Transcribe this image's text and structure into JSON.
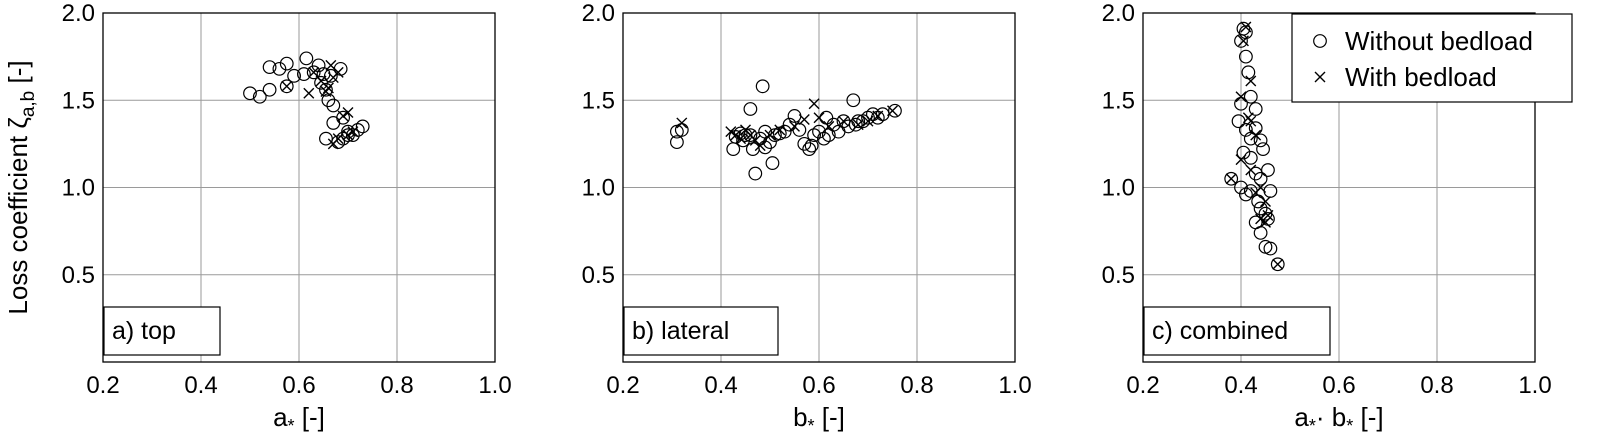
{
  "chart_data": [
    {
      "type": "scatter",
      "panel_label": "a) top",
      "xlabel": "a",
      "xlabel_sub": "*",
      "xlabel_unit": " [-]",
      "ylabel": "Loss coefficient ζ",
      "ylabel_sub": "a,b",
      "ylabel_unit": " [-]",
      "xlim": [
        0.2,
        1.0
      ],
      "ylim": [
        0.0,
        2.0
      ],
      "xticks": [
        "0.2",
        "0.4",
        "0.6",
        "0.8",
        "1.0"
      ],
      "yticks": [
        "0.5",
        "1.0",
        "1.5",
        "2.0"
      ],
      "grid": true,
      "series": [
        {
          "name": "Without bedload",
          "marker": "circle",
          "points": [
            [
              0.5,
              1.54
            ],
            [
              0.52,
              1.52
            ],
            [
              0.54,
              1.56
            ],
            [
              0.54,
              1.69
            ],
            [
              0.56,
              1.68
            ],
            [
              0.575,
              1.71
            ],
            [
              0.575,
              1.58
            ],
            [
              0.59,
              1.64
            ],
            [
              0.61,
              1.65
            ],
            [
              0.615,
              1.74
            ],
            [
              0.63,
              1.66
            ],
            [
              0.64,
              1.7
            ],
            [
              0.645,
              1.6
            ],
            [
              0.65,
              1.65
            ],
            [
              0.655,
              1.56
            ],
            [
              0.66,
              1.5
            ],
            [
              0.665,
              1.64
            ],
            [
              0.67,
              1.47
            ],
            [
              0.685,
              1.68
            ],
            [
              0.655,
              1.28
            ],
            [
              0.67,
              1.37
            ],
            [
              0.69,
              1.4
            ],
            [
              0.68,
              1.26
            ],
            [
              0.69,
              1.28
            ],
            [
              0.7,
              1.3
            ],
            [
              0.71,
              1.3
            ],
            [
              0.72,
              1.33
            ],
            [
              0.73,
              1.35
            ],
            [
              0.7,
              1.32
            ]
          ]
        },
        {
          "name": "With bedload",
          "marker": "cross",
          "points": [
            [
              0.575,
              1.58
            ],
            [
              0.62,
              1.54
            ],
            [
              0.63,
              1.66
            ],
            [
              0.645,
              1.61
            ],
            [
              0.655,
              1.55
            ],
            [
              0.665,
              1.7
            ],
            [
              0.67,
              1.63
            ],
            [
              0.68,
              1.66
            ],
            [
              0.66,
              1.57
            ],
            [
              0.67,
              1.25
            ],
            [
              0.68,
              1.28
            ],
            [
              0.69,
              1.41
            ],
            [
              0.7,
              1.43
            ],
            [
              0.7,
              1.3
            ],
            [
              0.71,
              1.32
            ]
          ]
        }
      ]
    },
    {
      "type": "scatter",
      "panel_label": "b) lateral",
      "xlabel": "b",
      "xlabel_sub": "*",
      "xlabel_unit": " [-]",
      "xlim": [
        0.2,
        1.0
      ],
      "ylim": [
        0.0,
        2.0
      ],
      "xticks": [
        "0.2",
        "0.4",
        "0.6",
        "0.8",
        "1.0"
      ],
      "yticks": [
        "0.5",
        "1.0",
        "1.5",
        "2.0"
      ],
      "grid": true,
      "series": [
        {
          "name": "Without bedload",
          "marker": "circle",
          "points": [
            [
              0.31,
              1.32
            ],
            [
              0.31,
              1.26
            ],
            [
              0.32,
              1.33
            ],
            [
              0.425,
              1.22
            ],
            [
              0.43,
              1.29
            ],
            [
              0.44,
              1.31
            ],
            [
              0.445,
              1.27
            ],
            [
              0.45,
              1.3
            ],
            [
              0.46,
              1.3
            ],
            [
              0.46,
              1.45
            ],
            [
              0.465,
              1.22
            ],
            [
              0.47,
              1.08
            ],
            [
              0.48,
              1.28
            ],
            [
              0.485,
              1.58
            ],
            [
              0.49,
              1.32
            ],
            [
              0.49,
              1.23
            ],
            [
              0.5,
              1.26
            ],
            [
              0.505,
              1.14
            ],
            [
              0.51,
              1.3
            ],
            [
              0.52,
              1.31
            ],
            [
              0.53,
              1.32
            ],
            [
              0.54,
              1.36
            ],
            [
              0.55,
              1.41
            ],
            [
              0.56,
              1.33
            ],
            [
              0.57,
              1.25
            ],
            [
              0.58,
              1.22
            ],
            [
              0.585,
              1.24
            ],
            [
              0.59,
              1.3
            ],
            [
              0.6,
              1.32
            ],
            [
              0.61,
              1.28
            ],
            [
              0.615,
              1.4
            ],
            [
              0.62,
              1.3
            ],
            [
              0.63,
              1.36
            ],
            [
              0.64,
              1.32
            ],
            [
              0.65,
              1.38
            ],
            [
              0.66,
              1.35
            ],
            [
              0.67,
              1.5
            ],
            [
              0.675,
              1.36
            ],
            [
              0.68,
              1.38
            ],
            [
              0.69,
              1.38
            ],
            [
              0.7,
              1.4
            ],
            [
              0.71,
              1.42
            ],
            [
              0.72,
              1.4
            ],
            [
              0.73,
              1.42
            ],
            [
              0.755,
              1.44
            ]
          ]
        },
        {
          "name": "With bedload",
          "marker": "cross",
          "points": [
            [
              0.32,
              1.37
            ],
            [
              0.42,
              1.32
            ],
            [
              0.43,
              1.3
            ],
            [
              0.44,
              1.28
            ],
            [
              0.45,
              1.33
            ],
            [
              0.46,
              1.3
            ],
            [
              0.47,
              1.27
            ],
            [
              0.48,
              1.24
            ],
            [
              0.5,
              1.3
            ],
            [
              0.52,
              1.33
            ],
            [
              0.55,
              1.35
            ],
            [
              0.57,
              1.39
            ],
            [
              0.59,
              1.48
            ],
            [
              0.6,
              1.4
            ],
            [
              0.62,
              1.35
            ],
            [
              0.65,
              1.38
            ],
            [
              0.68,
              1.36
            ],
            [
              0.7,
              1.38
            ],
            [
              0.72,
              1.41
            ],
            [
              0.75,
              1.44
            ]
          ]
        }
      ]
    },
    {
      "type": "scatter",
      "panel_label": "c) combined",
      "xlabel": "a",
      "xlabel_sub": "*",
      "xlabel_mid": "· b",
      "xlabel_sub2": "*",
      "xlabel_unit": " [-]",
      "xlim": [
        0.2,
        1.0
      ],
      "ylim": [
        0.0,
        2.0
      ],
      "xticks": [
        "0.2",
        "0.4",
        "0.6",
        "0.8",
        "1.0"
      ],
      "yticks": [
        "0.5",
        "1.0",
        "1.5",
        "2.0"
      ],
      "grid": true,
      "legend": "top-right",
      "series": [
        {
          "name": "Without bedload",
          "marker": "circle",
          "points": [
            [
              0.405,
              1.91
            ],
            [
              0.41,
              1.89
            ],
            [
              0.4,
              1.84
            ],
            [
              0.41,
              1.75
            ],
            [
              0.415,
              1.66
            ],
            [
              0.42,
              1.52
            ],
            [
              0.4,
              1.48
            ],
            [
              0.43,
              1.45
            ],
            [
              0.395,
              1.38
            ],
            [
              0.41,
              1.33
            ],
            [
              0.43,
              1.34
            ],
            [
              0.42,
              1.28
            ],
            [
              0.44,
              1.27
            ],
            [
              0.405,
              1.2
            ],
            [
              0.42,
              1.17
            ],
            [
              0.445,
              1.22
            ],
            [
              0.455,
              1.1
            ],
            [
              0.43,
              1.08
            ],
            [
              0.44,
              1.05
            ],
            [
              0.38,
              1.05
            ],
            [
              0.4,
              1.0
            ],
            [
              0.41,
              0.96
            ],
            [
              0.42,
              0.98
            ],
            [
              0.435,
              0.92
            ],
            [
              0.44,
              0.88
            ],
            [
              0.45,
              0.85
            ],
            [
              0.455,
              0.82
            ],
            [
              0.46,
              0.98
            ],
            [
              0.43,
              0.8
            ],
            [
              0.44,
              0.74
            ],
            [
              0.45,
              0.66
            ],
            [
              0.46,
              0.65
            ],
            [
              0.475,
              0.56
            ]
          ]
        },
        {
          "name": "With bedload",
          "marker": "cross",
          "points": [
            [
              0.41,
              1.92
            ],
            [
              0.405,
              1.84
            ],
            [
              0.42,
              1.61
            ],
            [
              0.415,
              1.4
            ],
            [
              0.4,
              1.52
            ],
            [
              0.42,
              1.38
            ],
            [
              0.43,
              1.3
            ],
            [
              0.4,
              1.16
            ],
            [
              0.42,
              1.1
            ],
            [
              0.44,
              1.0
            ],
            [
              0.43,
              0.97
            ],
            [
              0.38,
              1.05
            ],
            [
              0.45,
              0.92
            ],
            [
              0.44,
              0.82
            ],
            [
              0.45,
              0.8
            ],
            [
              0.455,
              0.84
            ],
            [
              0.475,
              0.56
            ]
          ]
        }
      ]
    }
  ]
}
